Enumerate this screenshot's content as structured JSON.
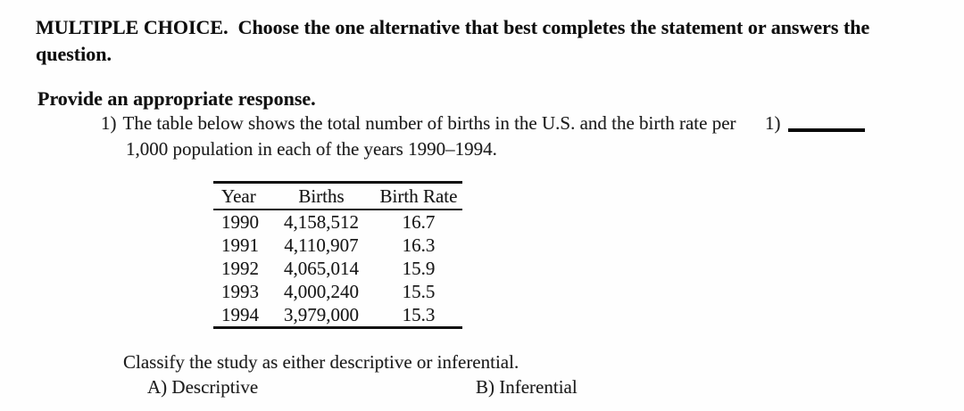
{
  "header": {
    "instructions": "MULTIPLE CHOICE.  Choose the one alternative that best completes the statement or answers the question."
  },
  "section": {
    "label": "Provide an appropriate response."
  },
  "question": {
    "number": "1)",
    "text": "The table below shows the total number of births in the U.S. and the birth rate per 1,000 population in each of the years 1990–1994.",
    "answer_label": "1)"
  },
  "table": {
    "columns": [
      "Year",
      "Births",
      "Birth Rate"
    ],
    "rows": [
      [
        "1990",
        "4,158,512",
        "16.7"
      ],
      [
        "1991",
        "4,110,907",
        "16.3"
      ],
      [
        "1992",
        "4,065,014",
        "15.9"
      ],
      [
        "1993",
        "4,000,240",
        "15.5"
      ],
      [
        "1994",
        "3,979,000",
        "15.3"
      ]
    ]
  },
  "prompt": "Classify the study as either descriptive or inferential.",
  "options": [
    {
      "label": "A) Descriptive"
    },
    {
      "label": "B) Inferential"
    }
  ],
  "colors": {
    "paper": "#fefefe",
    "ink": "#1b1b1b",
    "rule": "#101010"
  }
}
